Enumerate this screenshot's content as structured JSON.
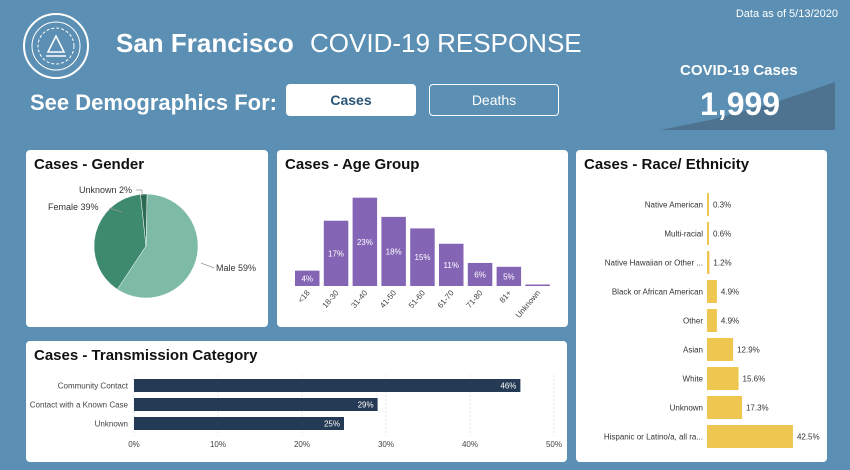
{
  "header": {
    "title_main": "San Francisco",
    "title_sub": "COVID-19 RESPONSE",
    "data_asof": "Data as of 5/13/2020",
    "demographics_label": "See Demographics For:",
    "buttons": {
      "cases": "Cases",
      "deaths": "Deaths"
    },
    "kpi": {
      "label": "COVID-19 Cases",
      "value": "1,999"
    }
  },
  "colors": {
    "background": "#5b8fb3",
    "pie_male": "#7dbba6",
    "pie_female": "#3d8a6e",
    "pie_unknown": "#2a6b52",
    "age_bar": "#8465b5",
    "transmission_bar": "#243a55",
    "race_bar": "#efc64f"
  },
  "cards": {
    "gender": {
      "title": "Cases - Gender"
    },
    "age": {
      "title": "Cases - Age Group"
    },
    "race": {
      "title": "Cases - Race/ Ethnicity"
    },
    "transmission": {
      "title": "Cases - Transmission Category"
    }
  },
  "chart_data": [
    {
      "id": "gender",
      "type": "pie",
      "title": "Cases - Gender",
      "slices": [
        {
          "label": "Male",
          "value": 59,
          "display": "Male 59%"
        },
        {
          "label": "Female",
          "value": 39,
          "display": "Female 39%"
        },
        {
          "label": "Unknown",
          "value": 2,
          "display": "Unknown 2%"
        }
      ]
    },
    {
      "id": "age",
      "type": "bar",
      "title": "Cases - Age Group",
      "categories": [
        "<18",
        "18-30",
        "31-40",
        "41-50",
        "51-60",
        "61-70",
        "71-80",
        "81+",
        "Unknown"
      ],
      "values": [
        4,
        17,
        23,
        18,
        15,
        11,
        6,
        5,
        0.3
      ],
      "labels": [
        "4%",
        "17%",
        "23%",
        "18%",
        "15%",
        "11%",
        "6%",
        "5%",
        ""
      ],
      "ylim": [
        0,
        25
      ]
    },
    {
      "id": "race",
      "type": "bar",
      "orientation": "horizontal",
      "title": "Cases - Race/ Ethnicity",
      "categories": [
        "Native American",
        "Multi-racial",
        "Native Hawaiian or Other ...",
        "Black or African American",
        "Other",
        "Asian",
        "White",
        "Unknown",
        "Hispanic or Latino/a, all ra..."
      ],
      "values": [
        0.3,
        0.6,
        1.2,
        4.9,
        4.9,
        12.9,
        15.6,
        17.3,
        42.5
      ],
      "labels": [
        "0.3%",
        "0.6%",
        "1.2%",
        "4.9%",
        "4.9%",
        "12.9%",
        "15.6%",
        "17.3%",
        "42.5%"
      ],
      "xlim": [
        0,
        45
      ]
    },
    {
      "id": "transmission",
      "type": "bar",
      "orientation": "horizontal",
      "title": "Cases - Transmission Category",
      "categories": [
        "Community Contact",
        "Contact with a Known Case",
        "Unknown"
      ],
      "values": [
        46,
        29,
        25
      ],
      "labels": [
        "46%",
        "29%",
        "25%"
      ],
      "xlim": [
        0,
        50
      ],
      "xticks": [
        0,
        10,
        20,
        30,
        40,
        50
      ],
      "xtick_labels": [
        "0%",
        "10%",
        "20%",
        "30%",
        "40%",
        "50%"
      ]
    }
  ]
}
